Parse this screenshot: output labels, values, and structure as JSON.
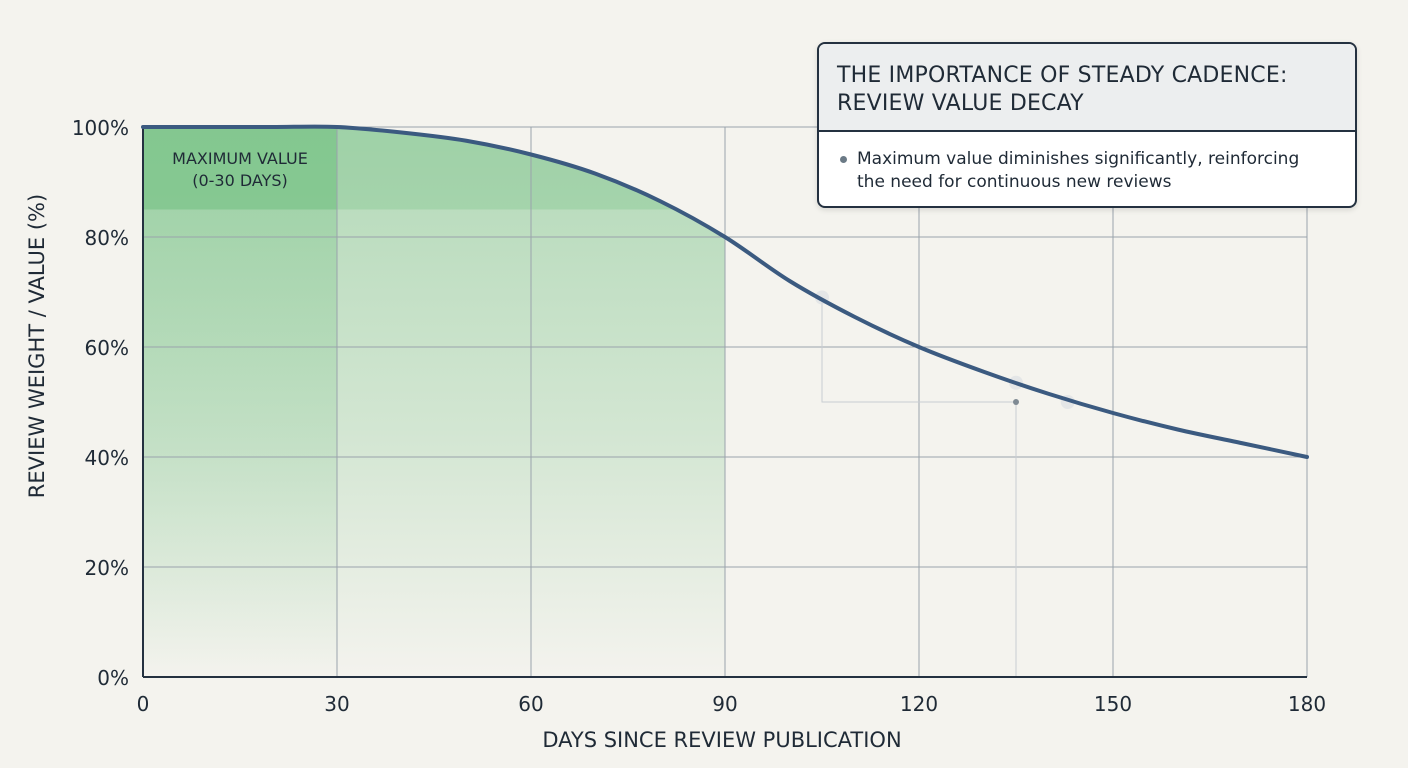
{
  "chart_data": {
    "type": "line",
    "title": "",
    "xlabel": "DAYS SINCE REVIEW PUBLICATION",
    "ylabel": "REVIEW WEIGHT / VALUE (%)",
    "xlim": [
      0,
      180
    ],
    "ylim": [
      0,
      100
    ],
    "x_ticks": [
      0,
      30,
      60,
      90,
      120,
      150,
      180
    ],
    "y_ticks": [
      0,
      20,
      40,
      60,
      80,
      100
    ],
    "x_tick_labels": [
      "0",
      "30",
      "60",
      "90",
      "120",
      "150",
      "180"
    ],
    "y_tick_labels": [
      "0%",
      "20%",
      "40%",
      "60%",
      "80%",
      "100%"
    ],
    "grid": true,
    "series": [
      {
        "name": "",
        "color": "#3b5a80",
        "x": [
          0,
          10,
          20,
          30,
          40,
          50,
          60,
          70,
          80,
          90,
          100,
          110,
          120,
          130,
          140,
          150,
          160,
          170,
          180
        ],
        "y": [
          100,
          100,
          100,
          100,
          99,
          97.5,
          95,
          91.5,
          86.5,
          80,
          72,
          65.5,
          60,
          55.5,
          51.5,
          48,
          45,
          42.5,
          40
        ]
      }
    ],
    "highlight_region": {
      "label_line1": "MAXIMUM VALUE",
      "label_line2": "(0-30 DAYS)",
      "x_range": [
        0,
        30
      ],
      "band_y_range": [
        85,
        100
      ],
      "shaded_area_x_range": [
        0,
        90
      ],
      "color": "#7cc48a"
    },
    "callout": {
      "title_line1": "THE IMPORTANCE OF STEADY CADENCE:",
      "title_line2": "REVIEW VALUE DECAY",
      "bullet_line1": "Maximum value diminishes significantly, reinforcing",
      "bullet_line2": "the need for continuous new reviews"
    }
  }
}
